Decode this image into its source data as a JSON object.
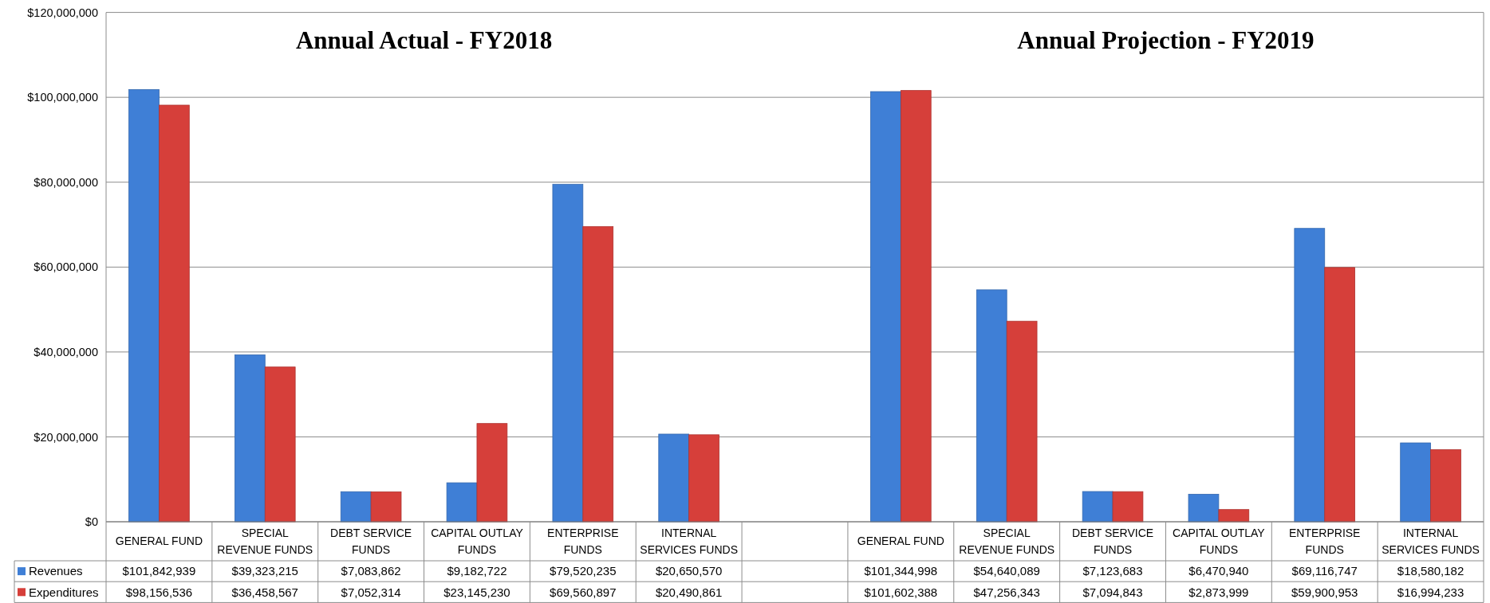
{
  "chart_data": {
    "type": "bar",
    "annotations": [
      "Annual Actual - FY2018",
      "Annual Projection - FY2019"
    ],
    "categories": [
      "GENERAL FUND",
      "SPECIAL REVENUE FUNDS",
      "DEBT SERVICE FUNDS",
      "CAPITAL OUTLAY FUNDS",
      "ENTERPRISE FUNDS",
      "INTERNAL SERVICES FUNDS",
      null,
      "GENERAL FUND",
      "SPECIAL REVENUE FUNDS",
      "DEBT SERVICE FUNDS",
      "CAPITAL OUTLAY FUNDS",
      "ENTERPRISE FUNDS",
      "INTERNAL SERVICES FUNDS"
    ],
    "series": [
      {
        "name": "Revenues",
        "color": "#3f7fd6",
        "values": [
          101842939,
          39323215,
          7083862,
          9182722,
          79520235,
          20650570,
          null,
          101344998,
          54640089,
          7123683,
          6470940,
          69116747,
          18580182
        ],
        "value_labels": [
          "$101,842,939",
          "$39,323,215",
          "$7,083,862",
          "$9,182,722",
          "$79,520,235",
          "$20,650,570",
          null,
          "$101,344,998",
          "$54,640,089",
          "$7,123,683",
          "$6,470,940",
          "$69,116,747",
          "$18,580,182"
        ]
      },
      {
        "name": "Expenditures",
        "color": "#d63f3a",
        "values": [
          98156536,
          36458567,
          7052314,
          23145230,
          69560897,
          20490861,
          null,
          101602388,
          47256343,
          7094843,
          2873999,
          59900953,
          16994233
        ],
        "value_labels": [
          "$98,156,536",
          "$36,458,567",
          "$7,052,314",
          "$23,145,230",
          "$69,560,897",
          "$20,490,861",
          null,
          "$101,602,388",
          "$47,256,343",
          "$7,094,843",
          "$2,873,999",
          "$59,900,953",
          "$16,994,233"
        ]
      }
    ],
    "ylim": [
      0,
      120000000
    ],
    "yticks": [
      {
        "value": 0,
        "label": "$0"
      },
      {
        "value": 20000000,
        "label": "$20,000,000"
      },
      {
        "value": 40000000,
        "label": "$40,000,000"
      },
      {
        "value": 60000000,
        "label": "$60,000,000"
      },
      {
        "value": 80000000,
        "label": "$80,000,000"
      },
      {
        "value": 100000000,
        "label": "$100,000,000"
      },
      {
        "value": 120000000,
        "label": "$120,000,000"
      }
    ],
    "grid": "y",
    "legend": "bottom left"
  }
}
